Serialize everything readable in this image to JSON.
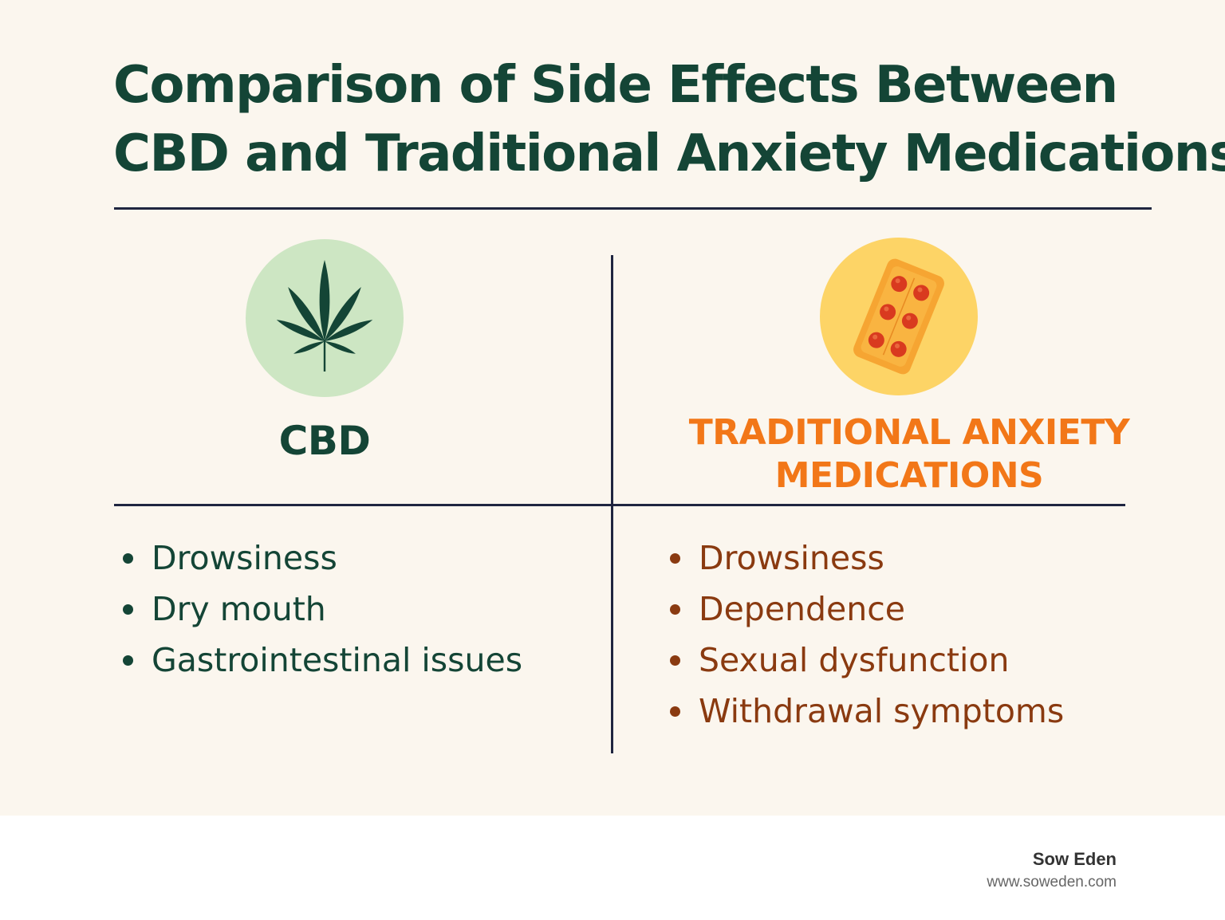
{
  "title": {
    "line1": "Comparison of Side Effects Between",
    "line2": "CBD and Traditional Anxiety Medications"
  },
  "columns": {
    "cbd": {
      "heading": "CBD",
      "icon": "cannabis-leaf-icon",
      "icon_bg": "#cde6c3",
      "color": "#144536",
      "side_effects": [
        "Drowsiness",
        "Dry mouth",
        "Gastrointestinal issues"
      ]
    },
    "traditional": {
      "heading_line1": "TRADITIONAL ANXIETY",
      "heading_line2": "MEDICATIONS",
      "icon": "pill-blister-pack-icon",
      "icon_bg": "#fdd466",
      "color": "#f27718",
      "text_color": "#8a3a10",
      "side_effects": [
        "Drowsiness",
        "Dependence",
        "Sexual dysfunction",
        "Withdrawal symptoms"
      ]
    }
  },
  "footer": {
    "brand": "Sow Eden",
    "url": "www.soweden.com"
  }
}
